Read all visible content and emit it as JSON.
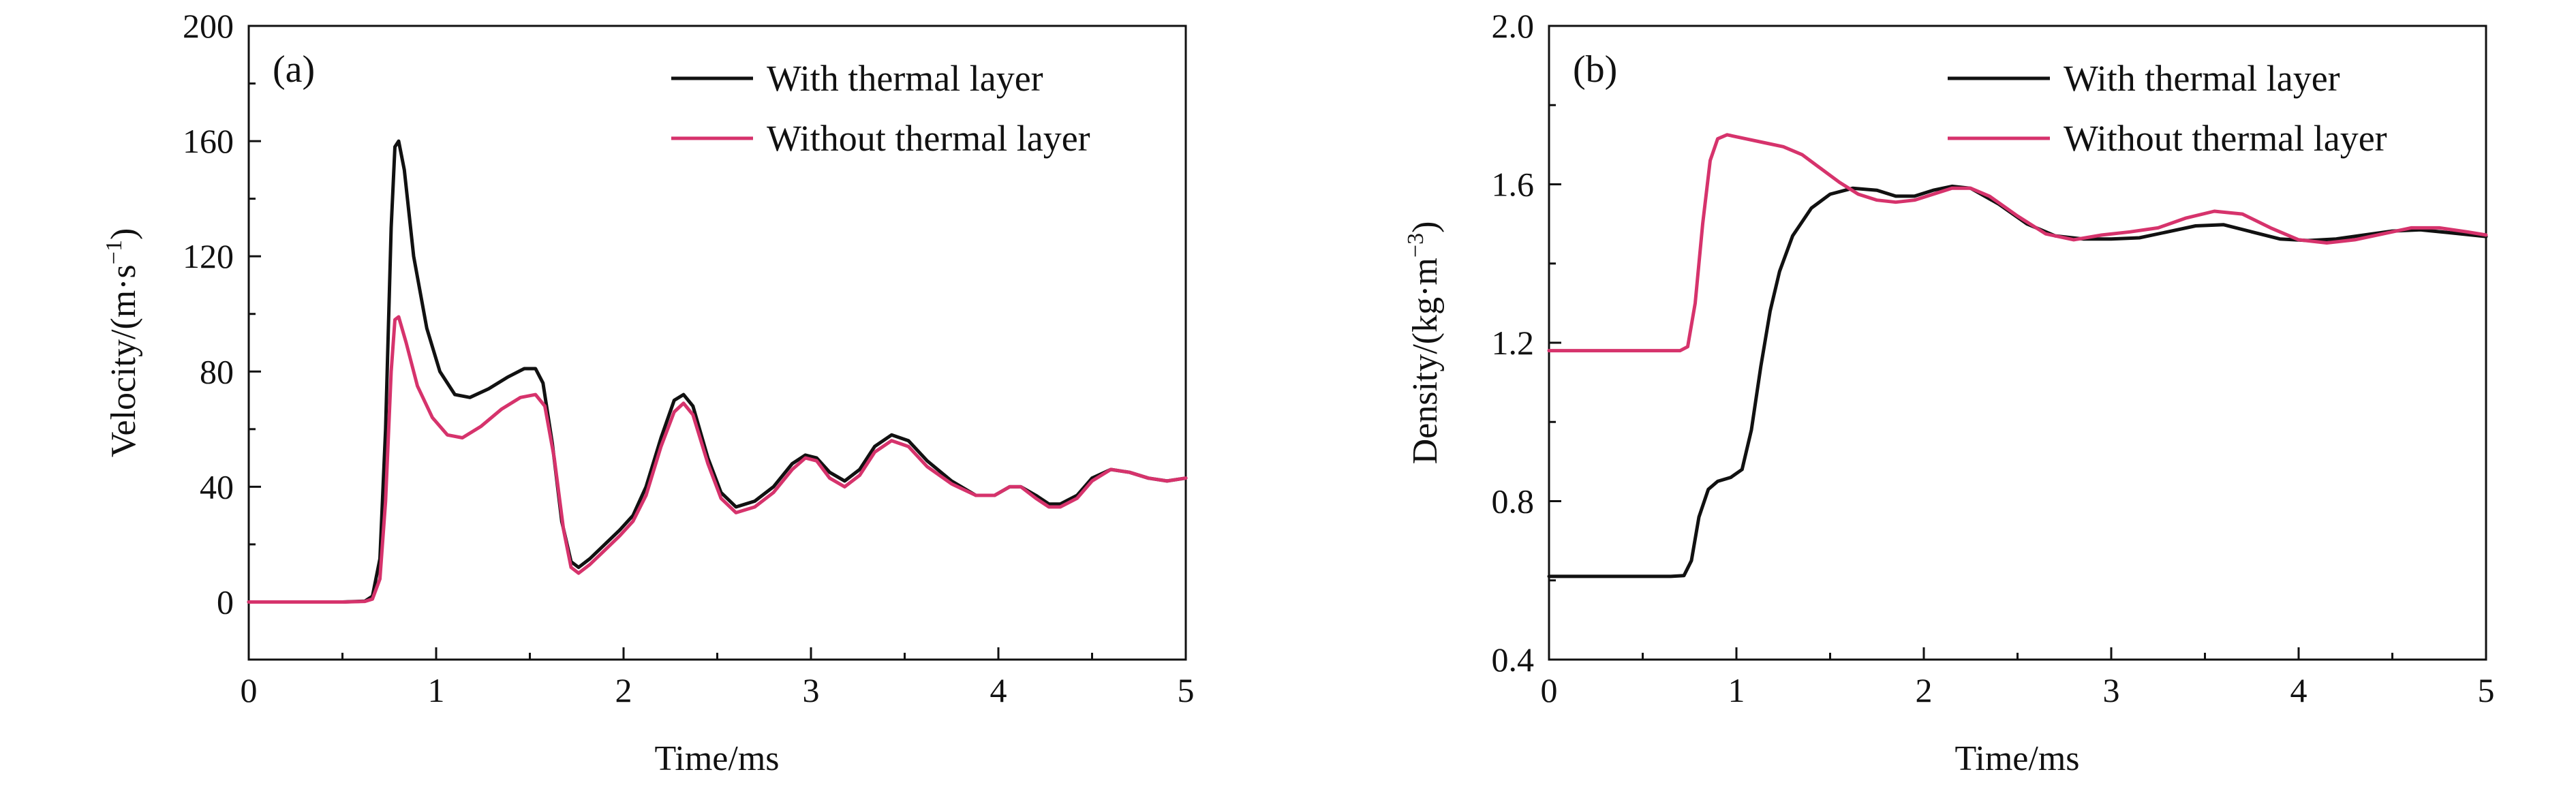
{
  "chart_data": [
    {
      "type": "line",
      "panel_label": "(a)",
      "xlabel": "Time/ms",
      "ylabel": "Velocity/(m·s",
      "ylabel_sup": "−1",
      "ylabel_end": ")",
      "xlim": [
        0,
        5
      ],
      "ylim": [
        -20,
        200
      ],
      "x_ticks": [
        0,
        1,
        2,
        3,
        4,
        5
      ],
      "y_ticks": [
        0,
        40,
        80,
        120,
        160,
        200
      ],
      "x_tick_labels": [
        "0",
        "1",
        "2",
        "3",
        "4",
        "5"
      ],
      "y_tick_labels": [
        "0",
        "40",
        "80",
        "120",
        "160",
        "200"
      ],
      "grid": false,
      "legend_position": "top-right",
      "series": [
        {
          "name": "With thermal layer",
          "color": "#111111",
          "points": [
            [
              0,
              0
            ],
            [
              0.5,
              0
            ],
            [
              0.62,
              0.3
            ],
            [
              0.66,
              2
            ],
            [
              0.7,
              15
            ],
            [
              0.73,
              60
            ],
            [
              0.76,
              130
            ],
            [
              0.78,
              158
            ],
            [
              0.8,
              160
            ],
            [
              0.83,
              150
            ],
            [
              0.88,
              120
            ],
            [
              0.95,
              95
            ],
            [
              1.02,
              80
            ],
            [
              1.1,
              72
            ],
            [
              1.18,
              71
            ],
            [
              1.28,
              74
            ],
            [
              1.38,
              78
            ],
            [
              1.47,
              81
            ],
            [
              1.53,
              81
            ],
            [
              1.57,
              76
            ],
            [
              1.62,
              55
            ],
            [
              1.67,
              28
            ],
            [
              1.72,
              14
            ],
            [
              1.76,
              12
            ],
            [
              1.82,
              15
            ],
            [
              1.9,
              20
            ],
            [
              1.98,
              25
            ],
            [
              2.05,
              30
            ],
            [
              2.12,
              40
            ],
            [
              2.2,
              57
            ],
            [
              2.27,
              70
            ],
            [
              2.32,
              72
            ],
            [
              2.37,
              68
            ],
            [
              2.45,
              50
            ],
            [
              2.52,
              38
            ],
            [
              2.6,
              33
            ],
            [
              2.7,
              35
            ],
            [
              2.8,
              40
            ],
            [
              2.9,
              48
            ],
            [
              2.97,
              51
            ],
            [
              3.03,
              50
            ],
            [
              3.1,
              45
            ],
            [
              3.18,
              42
            ],
            [
              3.26,
              46
            ],
            [
              3.34,
              54
            ],
            [
              3.43,
              58
            ],
            [
              3.52,
              56
            ],
            [
              3.62,
              49
            ],
            [
              3.75,
              42
            ],
            [
              3.88,
              37
            ],
            [
              3.98,
              37
            ],
            [
              4.06,
              40
            ],
            [
              4.12,
              40
            ],
            [
              4.2,
              37
            ],
            [
              4.27,
              34
            ],
            [
              4.33,
              34
            ],
            [
              4.42,
              37
            ],
            [
              4.5,
              43
            ],
            [
              4.6,
              46
            ],
            [
              4.7,
              45
            ],
            [
              4.8,
              43
            ],
            [
              4.9,
              42
            ],
            [
              5,
              43
            ]
          ]
        },
        {
          "name": "Without thermal layer",
          "color": "#d6336c",
          "points": [
            [
              0,
              0
            ],
            [
              0.5,
              0
            ],
            [
              0.62,
              0.2
            ],
            [
              0.66,
              1
            ],
            [
              0.7,
              8
            ],
            [
              0.73,
              35
            ],
            [
              0.76,
              80
            ],
            [
              0.78,
              98
            ],
            [
              0.8,
              99
            ],
            [
              0.84,
              90
            ],
            [
              0.9,
              75
            ],
            [
              0.98,
              64
            ],
            [
              1.06,
              58
            ],
            [
              1.14,
              57
            ],
            [
              1.24,
              61
            ],
            [
              1.35,
              67
            ],
            [
              1.45,
              71
            ],
            [
              1.53,
              72
            ],
            [
              1.58,
              68
            ],
            [
              1.63,
              50
            ],
            [
              1.68,
              25
            ],
            [
              1.72,
              12
            ],
            [
              1.76,
              10
            ],
            [
              1.82,
              13
            ],
            [
              1.9,
              18
            ],
            [
              1.98,
              23
            ],
            [
              2.05,
              28
            ],
            [
              2.12,
              37
            ],
            [
              2.2,
              54
            ],
            [
              2.27,
              66
            ],
            [
              2.32,
              69
            ],
            [
              2.37,
              65
            ],
            [
              2.45,
              48
            ],
            [
              2.52,
              36
            ],
            [
              2.6,
              31
            ],
            [
              2.7,
              33
            ],
            [
              2.8,
              38
            ],
            [
              2.9,
              46
            ],
            [
              2.97,
              50
            ],
            [
              3.03,
              49
            ],
            [
              3.1,
              43
            ],
            [
              3.18,
              40
            ],
            [
              3.26,
              44
            ],
            [
              3.34,
              52
            ],
            [
              3.43,
              56
            ],
            [
              3.52,
              54
            ],
            [
              3.62,
              47
            ],
            [
              3.75,
              41
            ],
            [
              3.88,
              37
            ],
            [
              3.98,
              37
            ],
            [
              4.06,
              40
            ],
            [
              4.12,
              40
            ],
            [
              4.2,
              36
            ],
            [
              4.27,
              33
            ],
            [
              4.33,
              33
            ],
            [
              4.42,
              36
            ],
            [
              4.5,
              42
            ],
            [
              4.6,
              46
            ],
            [
              4.7,
              45
            ],
            [
              4.8,
              43
            ],
            [
              4.9,
              42
            ],
            [
              5,
              43
            ]
          ]
        }
      ]
    },
    {
      "type": "line",
      "panel_label": "(b)",
      "xlabel": "Time/ms",
      "ylabel": "Density/(kg·m",
      "ylabel_sup": "−3",
      "ylabel_end": ")",
      "xlim": [
        0,
        5
      ],
      "ylim": [
        0.4,
        2.0
      ],
      "x_ticks": [
        0,
        1,
        2,
        3,
        4,
        5
      ],
      "y_ticks": [
        0.4,
        0.8,
        1.2,
        1.6,
        2.0
      ],
      "x_tick_labels": [
        "0",
        "1",
        "2",
        "3",
        "4",
        "5"
      ],
      "y_tick_labels": [
        "0.4",
        "0.8",
        "1.2",
        "1.6",
        "2.0"
      ],
      "grid": false,
      "legend_position": "top-right",
      "series": [
        {
          "name": "With thermal layer",
          "color": "#111111",
          "points": [
            [
              0,
              0.61
            ],
            [
              0.65,
              0.61
            ],
            [
              0.72,
              0.612
            ],
            [
              0.76,
              0.65
            ],
            [
              0.8,
              0.76
            ],
            [
              0.85,
              0.83
            ],
            [
              0.9,
              0.85
            ],
            [
              0.97,
              0.86
            ],
            [
              1.03,
              0.88
            ],
            [
              1.08,
              0.98
            ],
            [
              1.13,
              1.14
            ],
            [
              1.18,
              1.28
            ],
            [
              1.23,
              1.38
            ],
            [
              1.3,
              1.47
            ],
            [
              1.4,
              1.54
            ],
            [
              1.5,
              1.575
            ],
            [
              1.62,
              1.59
            ],
            [
              1.75,
              1.585
            ],
            [
              1.85,
              1.57
            ],
            [
              1.95,
              1.57
            ],
            [
              2.05,
              1.585
            ],
            [
              2.15,
              1.595
            ],
            [
              2.25,
              1.59
            ],
            [
              2.4,
              1.55
            ],
            [
              2.55,
              1.5
            ],
            [
              2.7,
              1.47
            ],
            [
              2.85,
              1.462
            ],
            [
              3.0,
              1.462
            ],
            [
              3.15,
              1.465
            ],
            [
              3.3,
              1.48
            ],
            [
              3.45,
              1.495
            ],
            [
              3.6,
              1.498
            ],
            [
              3.75,
              1.48
            ],
            [
              3.9,
              1.462
            ],
            [
              4.05,
              1.458
            ],
            [
              4.2,
              1.462
            ],
            [
              4.35,
              1.472
            ],
            [
              4.5,
              1.482
            ],
            [
              4.65,
              1.485
            ],
            [
              4.8,
              1.478
            ],
            [
              5,
              1.468
            ]
          ]
        },
        {
          "name": "Without thermal layer",
          "color": "#d6336c",
          "points": [
            [
              0,
              1.18
            ],
            [
              0.7,
              1.18
            ],
            [
              0.74,
              1.19
            ],
            [
              0.78,
              1.3
            ],
            [
              0.82,
              1.5
            ],
            [
              0.86,
              1.66
            ],
            [
              0.9,
              1.715
            ],
            [
              0.95,
              1.725
            ],
            [
              1.05,
              1.715
            ],
            [
              1.15,
              1.705
            ],
            [
              1.25,
              1.695
            ],
            [
              1.35,
              1.675
            ],
            [
              1.45,
              1.64
            ],
            [
              1.55,
              1.605
            ],
            [
              1.65,
              1.575
            ],
            [
              1.75,
              1.56
            ],
            [
              1.85,
              1.555
            ],
            [
              1.95,
              1.56
            ],
            [
              2.05,
              1.575
            ],
            [
              2.15,
              1.59
            ],
            [
              2.25,
              1.59
            ],
            [
              2.35,
              1.57
            ],
            [
              2.5,
              1.52
            ],
            [
              2.65,
              1.475
            ],
            [
              2.8,
              1.46
            ],
            [
              2.95,
              1.472
            ],
            [
              3.1,
              1.48
            ],
            [
              3.25,
              1.49
            ],
            [
              3.4,
              1.515
            ],
            [
              3.55,
              1.532
            ],
            [
              3.7,
              1.525
            ],
            [
              3.85,
              1.49
            ],
            [
              4.0,
              1.46
            ],
            [
              4.15,
              1.452
            ],
            [
              4.3,
              1.46
            ],
            [
              4.45,
              1.475
            ],
            [
              4.6,
              1.49
            ],
            [
              4.75,
              1.49
            ],
            [
              4.9,
              1.48
            ],
            [
              5,
              1.472
            ]
          ]
        }
      ]
    }
  ]
}
